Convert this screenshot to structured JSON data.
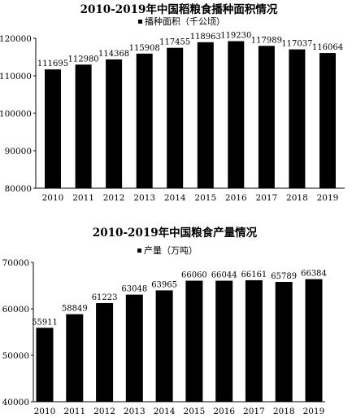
{
  "chart_data": [
    {
      "type": "bar",
      "title": "2010-2019年中国稻粮食播种面积情况",
      "legend": "播种面积（千公顷）",
      "legend_position": "top-left",
      "categories": [
        "2010",
        "2011",
        "2012",
        "2013",
        "2014",
        "2015",
        "2016",
        "2017",
        "2018",
        "2019"
      ],
      "values": [
        111695,
        112980,
        114368,
        115908,
        117455,
        118963,
        119230,
        117989,
        117037,
        116064
      ],
      "data_labels": [
        "111695",
        "112980",
        "114368",
        "115908",
        "117455",
        "118963",
        "119230",
        "117989",
        "117037",
        "116064"
      ],
      "ylim": [
        80000,
        120000
      ],
      "yticks": [
        "80000",
        "90000",
        "100000",
        "110000",
        "120000"
      ],
      "grid": false,
      "bar_color": "#000000"
    },
    {
      "type": "bar",
      "title": "2010-2019年中国粮食产量情况",
      "legend": "产量（万吨）",
      "legend_position": "top-left",
      "categories": [
        "2010",
        "2011",
        "2012",
        "2013",
        "2014",
        "2015",
        "2016",
        "2017",
        "2018",
        "2019"
      ],
      "values": [
        55911,
        58849,
        61223,
        63048,
        63965,
        66060,
        66044,
        66161,
        65789,
        66384
      ],
      "data_labels": [
        "55911",
        "58849",
        "61223",
        "63048",
        "63965",
        "66060",
        "66044",
        "66161",
        "65789",
        "66384"
      ],
      "ylim": [
        40000,
        70000
      ],
      "yticks": [
        "40000",
        "50000",
        "60000",
        "70000"
      ],
      "grid": false,
      "bar_color": "#000000"
    }
  ]
}
